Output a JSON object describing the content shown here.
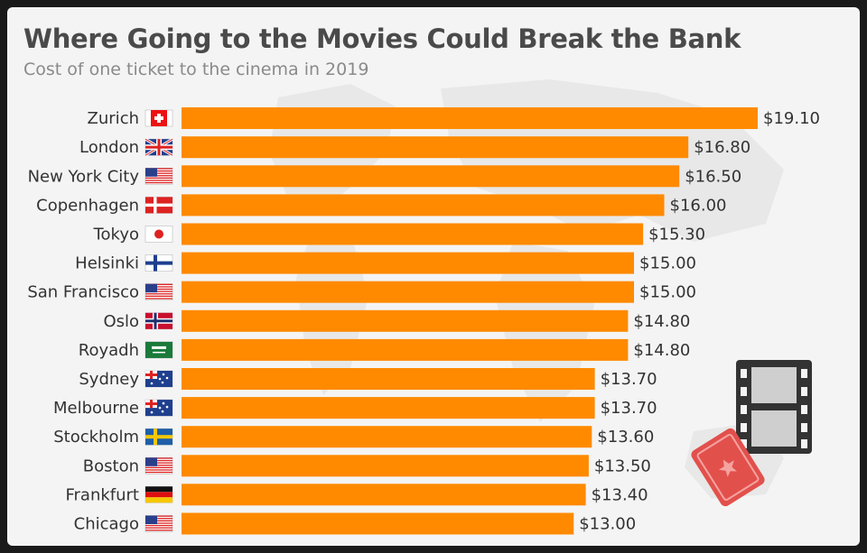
{
  "title": "Where Going to the Movies Could Break the Bank",
  "subtitle": "Cost of one ticket to the cinema in 2019",
  "colors": {
    "bar": "#ff8a00",
    "text": "#333333",
    "title": "#4a4a4a",
    "subtitle": "#8a8a8a"
  },
  "icons": [
    "film-strip-icon",
    "movie-ticket-icon"
  ],
  "chart_data": {
    "type": "bar",
    "orientation": "horizontal",
    "categories": [
      "Zurich",
      "London",
      "New York City",
      "Copenhagen",
      "Tokyo",
      "Helsinki",
      "San Francisco",
      "Oslo",
      "Royadh",
      "Sydney",
      "Melbourne",
      "Stockholm",
      "Boston",
      "Frankfurt",
      "Chicago"
    ],
    "flags": [
      "switzerland",
      "united-kingdom",
      "united-states",
      "denmark",
      "japan",
      "finland",
      "united-states",
      "norway",
      "saudi-arabia",
      "australia",
      "australia",
      "sweden",
      "united-states",
      "germany",
      "united-states"
    ],
    "values": [
      19.1,
      16.8,
      16.5,
      16.0,
      15.3,
      15.0,
      15.0,
      14.8,
      14.8,
      13.7,
      13.7,
      13.6,
      13.5,
      13.4,
      13.0
    ],
    "value_labels": [
      "$19.10",
      "$16.80",
      "$16.50",
      "$16.00",
      "$15.30",
      "$15.00",
      "$15.00",
      "$14.80",
      "$14.80",
      "$13.70",
      "$13.70",
      "$13.60",
      "$13.50",
      "$13.40",
      "$13.00"
    ],
    "title": "Where Going to the Movies Could Break the Bank",
    "xlabel": "",
    "ylabel": "",
    "xlim": [
      0,
      19.1
    ],
    "grid": false,
    "legend": "none"
  }
}
